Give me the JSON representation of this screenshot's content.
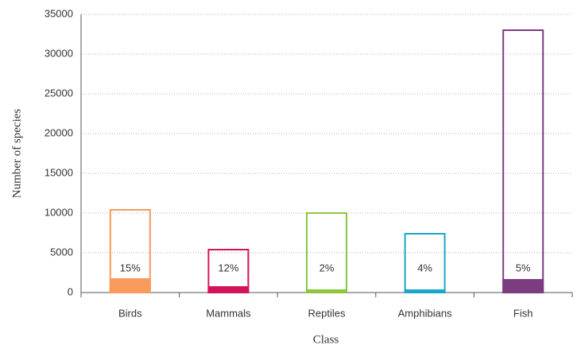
{
  "chart_data": {
    "type": "bar",
    "x_label": "Class",
    "y_label": "Number of species",
    "categories": [
      "Birds",
      "Mammals",
      "Reptiles",
      "Amphibians",
      "Fish"
    ],
    "colors": [
      "#f79a5b",
      "#d4145a",
      "#8dc63f",
      "#1ba7c9",
      "#7b3d7f"
    ],
    "values": [
      10400,
      5400,
      10000,
      7400,
      33000
    ],
    "highlighted_values": [
      1700,
      700,
      300,
      300,
      1600
    ],
    "percentages": [
      15,
      12,
      2,
      4,
      5
    ],
    "percentage_labels": [
      "15%",
      "12%",
      "2%",
      "4%",
      "5%"
    ],
    "ylim": [
      0,
      35000
    ],
    "yticks": [
      0,
      5000,
      10000,
      15000,
      20000,
      25000,
      30000,
      35000
    ],
    "grid": true
  }
}
